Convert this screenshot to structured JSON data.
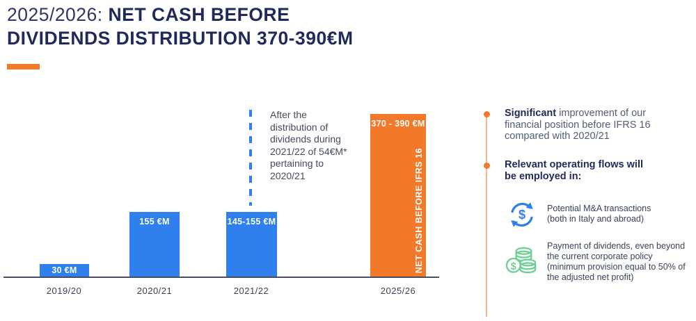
{
  "title": {
    "prefix": "2025/2026: ",
    "main": "NET CASH BEFORE DIVIDENDS DISTRIBUTION 370-390€M"
  },
  "colors": {
    "navy": "#1f2a5a",
    "muted_text": "#535d75",
    "bar_blue": "#2f80ed",
    "accent_orange": "#f3792a",
    "icon_green": "#6fcf97",
    "white": "#ffffff"
  },
  "chart_data": {
    "type": "bar",
    "title": "2025/2026: NET CASH BEFORE DIVIDENDS DISTRIBUTION 370-390€M",
    "categories": [
      "2019/20",
      "2020/21",
      "2021/22",
      "2025/26"
    ],
    "values": [
      30,
      155,
      150,
      380
    ],
    "value_ranges": [
      [
        30,
        30
      ],
      [
        155,
        155
      ],
      [
        145,
        155
      ],
      [
        370,
        390
      ]
    ],
    "value_labels": [
      "30 €M",
      "155 €M",
      "145-155 €M",
      "370 - 390 €M"
    ],
    "series_colors": [
      "#2f80ed",
      "#2f80ed",
      "#2f80ed",
      "#f3792a"
    ],
    "unit": "€M",
    "ylim": [
      0,
      400
    ],
    "grid": false,
    "legend": false,
    "highlight_bar_label": "NET CASH BEFORE IFRS 16",
    "annotation": "After the distribution of dividends during 2021/22 of 54€M* pertaining to 2020/21"
  },
  "right_panel": {
    "bullet1_bold": "Significant",
    "bullet1_rest": " improvement of our financial position before IFRS 16 compared with 2020/21",
    "bullet2": "Relevant operating flows will be employed in:",
    "items": [
      {
        "icon": "money-cycle-icon",
        "text": "Potential M&A transactions (both in Italy and abroad)"
      },
      {
        "icon": "coins-icon",
        "text": "Payment of dividends, even beyond the current corporate policy (minimum provision equal to 50% of the adjusted net profit)"
      }
    ]
  }
}
